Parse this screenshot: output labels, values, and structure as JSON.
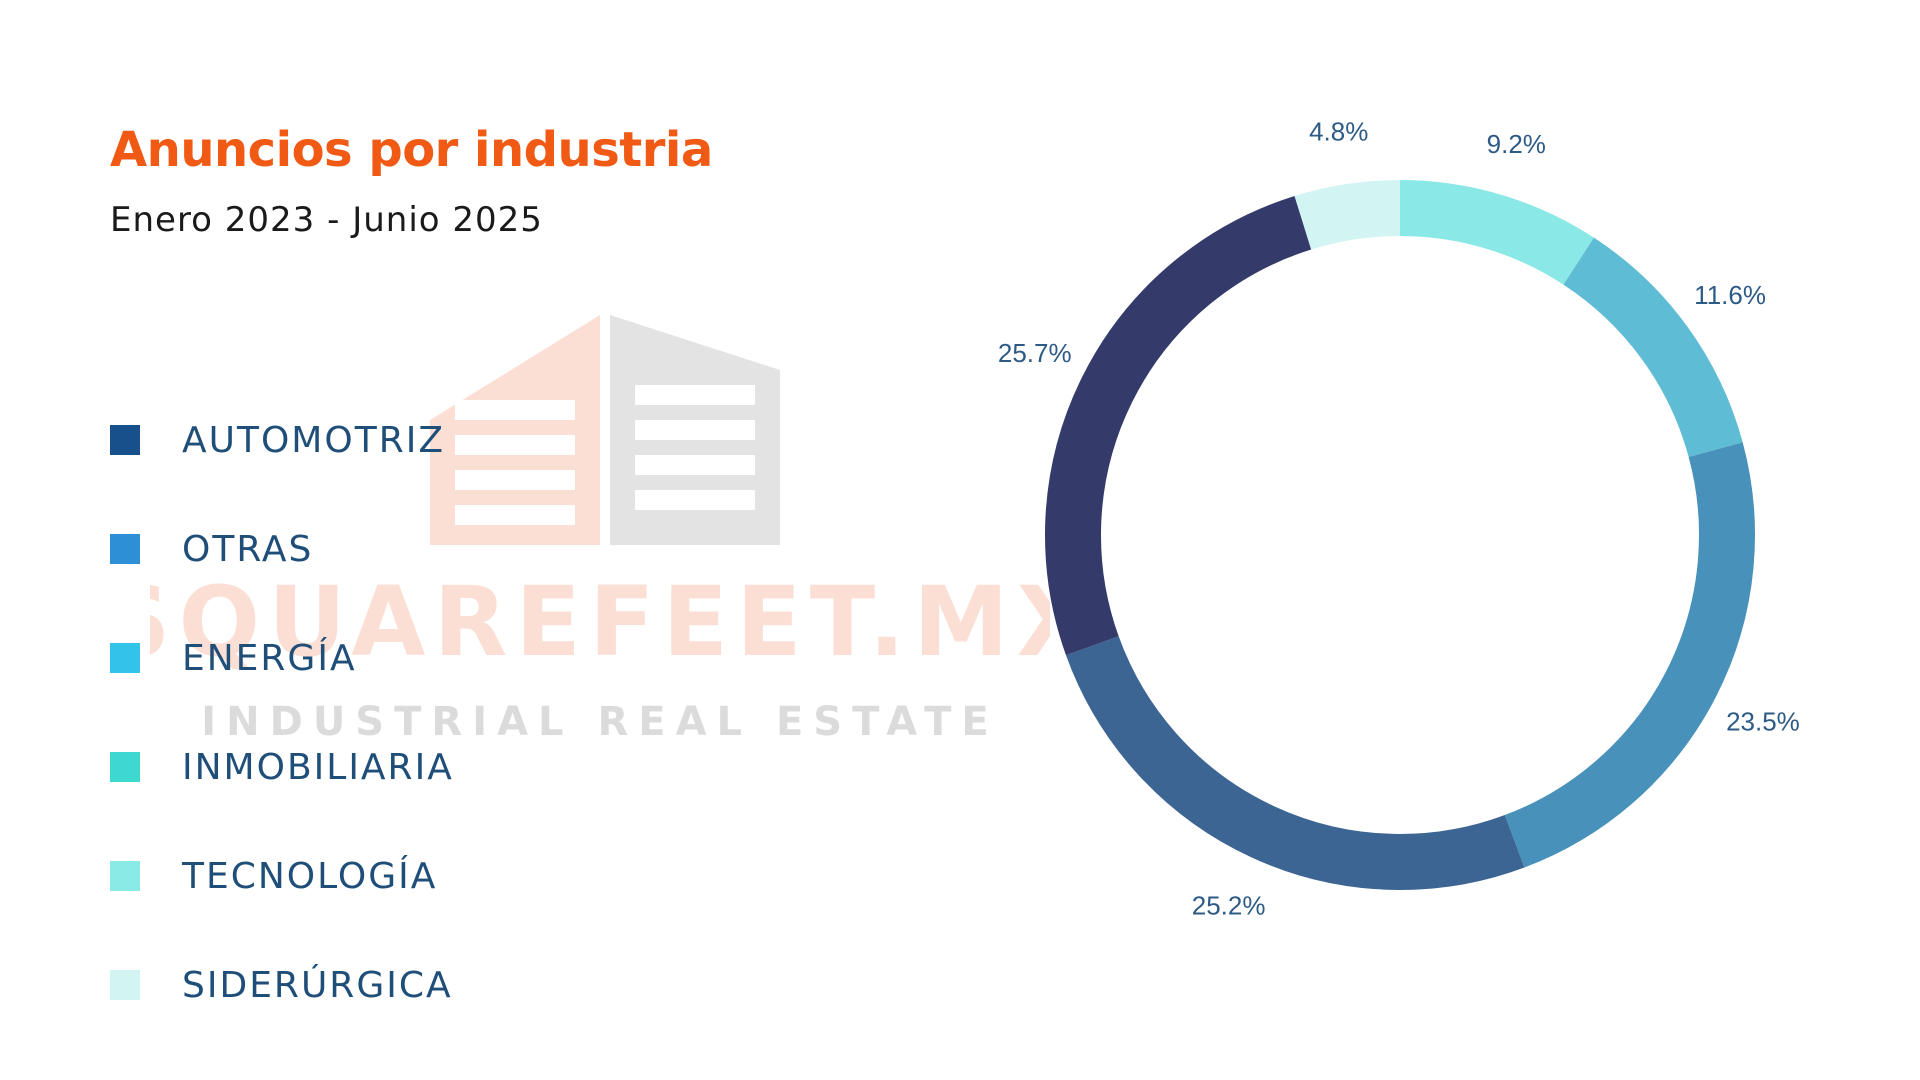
{
  "title": "Anuncios por industria",
  "subtitle": "Enero 2023 - Junio 2025",
  "watermark": {
    "brand": "SQUAREFEET.MX",
    "tagline": "INDUSTRIAL REAL ESTATE"
  },
  "legend": [
    {
      "label": "AUTOMOTRIZ",
      "color": "#17508a"
    },
    {
      "label": "OTRAS",
      "color": "#2d8fd6"
    },
    {
      "label": "ENERGÍA",
      "color": "#33c3ea"
    },
    {
      "label": "INMOBILIARIA",
      "color": "#3dd9d0"
    },
    {
      "label": "TECNOLOGÍA",
      "color": "#8aeae5"
    },
    {
      "label": "SIDERÚRGICA",
      "color": "#d2f4f3"
    }
  ],
  "chart_data": {
    "type": "pie",
    "donut": true,
    "slices": [
      {
        "label": "9.2%",
        "value": 9.2,
        "color": "#8ae8e6"
      },
      {
        "label": "11.6%",
        "value": 11.6,
        "color": "#5fbcd5"
      },
      {
        "label": "23.5%",
        "value": 23.5,
        "color": "#4891ba"
      },
      {
        "label": "25.2%",
        "value": 25.2,
        "color": "#3d6593"
      },
      {
        "label": "25.7%",
        "value": 25.7,
        "color": "#343b6b"
      },
      {
        "label": "4.8%",
        "value": 4.8,
        "color": "#d2f4f3"
      }
    ]
  }
}
